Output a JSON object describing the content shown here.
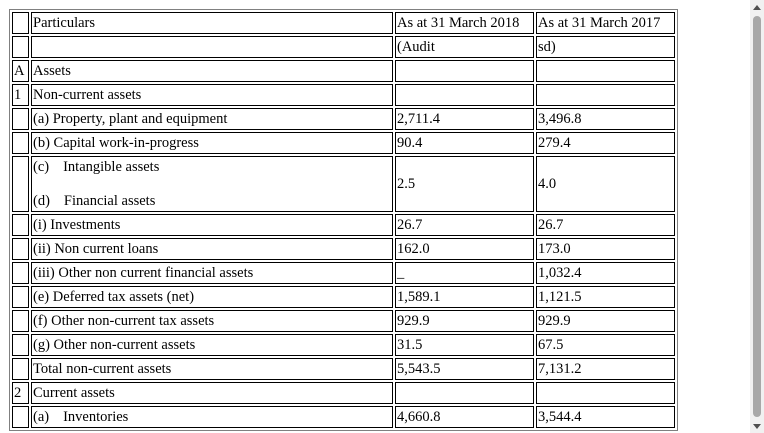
{
  "header": {
    "particulars": "Particulars",
    "year1": "As at 31 March 2018",
    "year2": "As at 31 March 2017",
    "audit1": "(Audit",
    "audit2": "sd)"
  },
  "rows": {
    "assets_idx": "A",
    "assets_label": "Assets",
    "ncassets_idx": "1",
    "ncassets_label": "Non-current assets",
    "ppe_label": "(a) Property, plant and equipment",
    "ppe_y1": "2,711.4",
    "ppe_y2": "3,496.8",
    "cwip_label": "(b) Capital work-in-progress",
    "cwip_y1": "90.4",
    "cwip_y2": "279.4",
    "intangible_prefix": "(c)",
    "intangible_label": "Intangible assets",
    "financial_prefix": "(d)",
    "financial_label": "Financial assets",
    "intangible_y1": "2.5",
    "intangible_y2": "4.0",
    "investments_label": "(i) Investments",
    "investments_y1": "26.7",
    "investments_y2": "26.7",
    "ncloans_label": "(ii) Non current loans",
    "ncloans_y1": "162.0",
    "ncloans_y2": "173.0",
    "otherfin_label": "(iii) Other non current financial assets",
    "otherfin_y1": "_",
    "otherfin_y2": "1,032.4",
    "dta_label": "(e) Deferred tax assets (net)",
    "dta_y1": "1,589.1",
    "dta_y2": "1,121.5",
    "nctax_label": "(f) Other non-current tax assets",
    "nctax_y1": "929.9",
    "nctax_y2": "929.9",
    "otherncassets_label": "(g) Other non-current assets",
    "otherncassets_y1": "31.5",
    "otherncassets_y2": "67.5",
    "total_label": "Total non-current assets",
    "total_y1": "5,543.5",
    "total_y2": "7,131.2",
    "current_idx": "2",
    "current_label": "Current assets",
    "inventories_prefix": "(a)",
    "inventories_label": "Inventories",
    "inventories_y1": "4,660.8",
    "inventories_y2": "3,544.4"
  }
}
